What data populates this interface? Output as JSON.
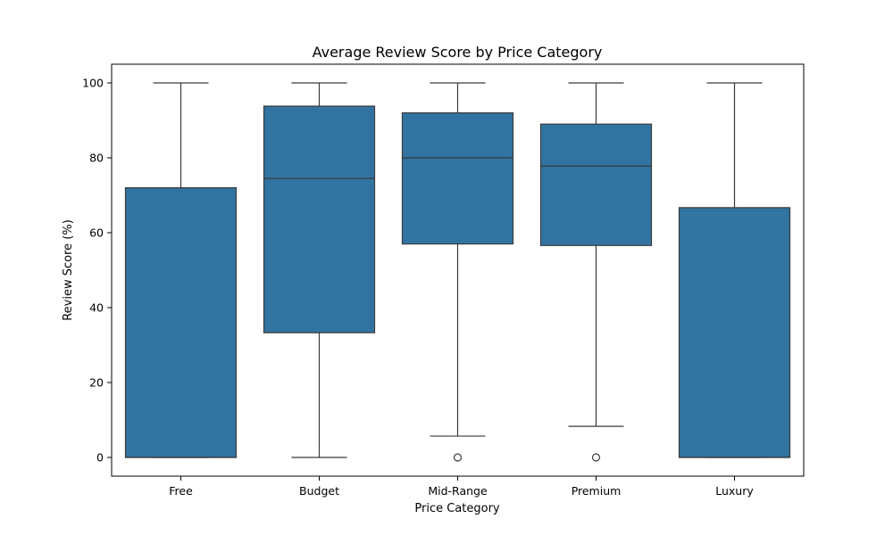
{
  "chart_data": {
    "type": "box",
    "title": "Average Review Score by Price Category",
    "xlabel": "Price Category",
    "ylabel": "Review Score (%)",
    "ylim": [
      -5,
      105
    ],
    "yticks": [
      0,
      20,
      40,
      60,
      80,
      100
    ],
    "grid": false,
    "color": "#3274a1",
    "line_color": "#3a3a3a",
    "categories": [
      "Free",
      "Budget",
      "Mid-Range",
      "Premium",
      "Luxury"
    ],
    "boxes": [
      {
        "category": "Free",
        "whisker_low": 0,
        "q1": 0,
        "median": 0,
        "q3": 72,
        "whisker_high": 100,
        "outliers": []
      },
      {
        "category": "Budget",
        "whisker_low": 0,
        "q1": 33.3,
        "median": 74.5,
        "q3": 93.8,
        "whisker_high": 100,
        "outliers": []
      },
      {
        "category": "Mid-Range",
        "whisker_low": 5.7,
        "q1": 57,
        "median": 80,
        "q3": 92,
        "whisker_high": 100,
        "outliers": [
          0
        ]
      },
      {
        "category": "Premium",
        "whisker_low": 8.3,
        "q1": 56.6,
        "median": 77.8,
        "q3": 89,
        "whisker_high": 100,
        "outliers": [
          0
        ]
      },
      {
        "category": "Luxury",
        "whisker_low": 0,
        "q1": 0,
        "median": 0,
        "q3": 66.7,
        "whisker_high": 100,
        "outliers": []
      }
    ]
  }
}
